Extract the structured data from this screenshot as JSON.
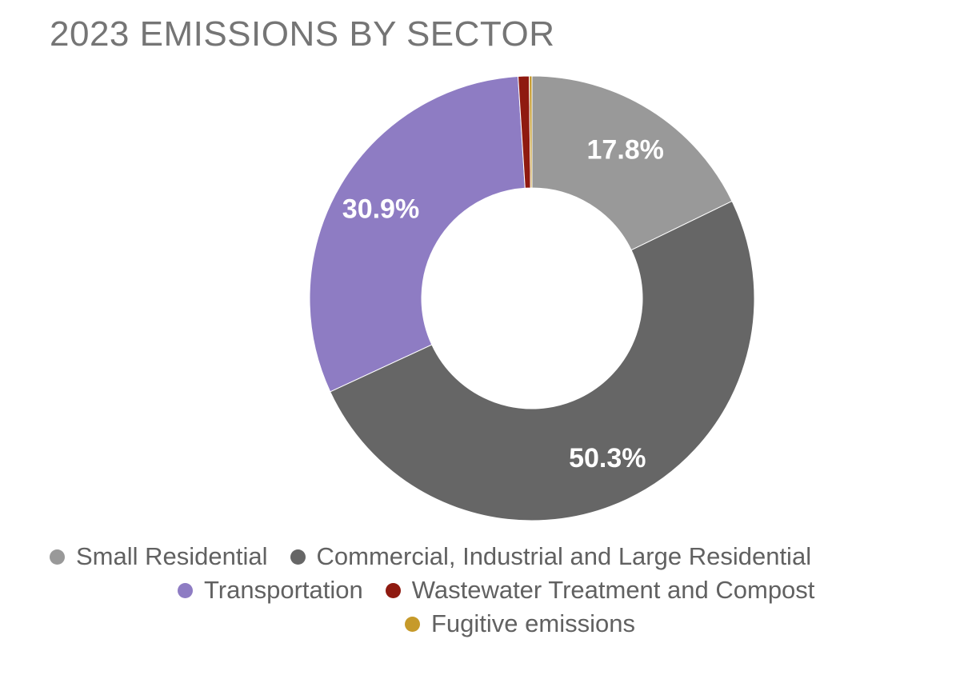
{
  "chart_data": {
    "type": "pie",
    "variant": "donut",
    "title": "2023 EMISSIONS BY SECTOR",
    "legend_position": "bottom",
    "slices": [
      {
        "name": "Small Residential",
        "value": 17.8,
        "label": "17.8%",
        "color": "#999999"
      },
      {
        "name": "Commercial, Industrial and Large Residential",
        "value": 50.3,
        "label": "50.3%",
        "color": "#666666"
      },
      {
        "name": "Transportation",
        "value": 30.9,
        "label": "30.9%",
        "color": "#8e7cc3"
      },
      {
        "name": "Wastewater Treatment and Compost",
        "value": 0.8,
        "label": "",
        "color": "#8f1a10"
      },
      {
        "name": "Fugitive emissions",
        "value": 0.2,
        "label": "",
        "color": "#c69a2a"
      }
    ]
  }
}
